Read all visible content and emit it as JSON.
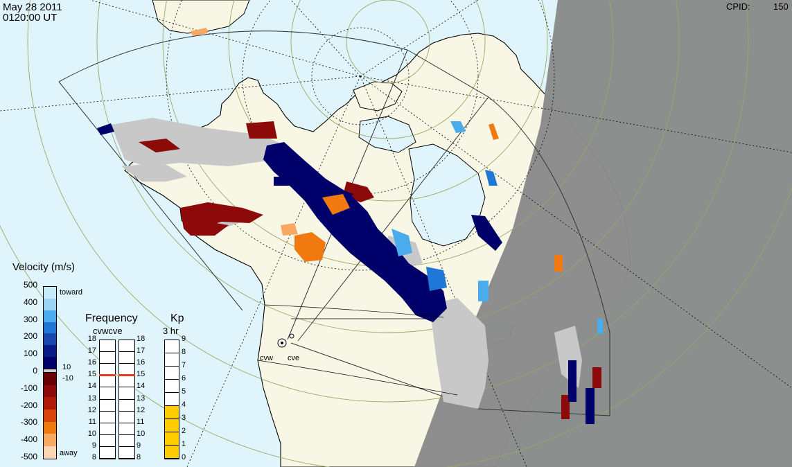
{
  "header": {
    "date": "May 28 2011",
    "time": "0120:00 UT",
    "cpid_label": "CPID:",
    "cpid_value": "150"
  },
  "colors": {
    "ocean": "#e0f4fc",
    "land": "#f8f6e4",
    "night": "#8a8a8a",
    "ground_scatter": "#c8c8c8",
    "coast": "#000000",
    "grid": "#9aa86a"
  },
  "radars": [
    {
      "code": "cvw"
    },
    {
      "code": "cve"
    }
  ],
  "velocity_scale": {
    "title": "Velocity (m/s)",
    "ticks": [
      "500",
      "400",
      "300",
      "200",
      "100",
      "0",
      "-100",
      "-200",
      "-300",
      "-400",
      "-500"
    ],
    "toward_label": "toward",
    "away_label": "away",
    "gs_upper_label": "10",
    "gs_lower_label": "-10",
    "colors": [
      "#c6ecfb",
      "#9dd6f5",
      "#4aacec",
      "#1f78d8",
      "#1847b0",
      "#0a1a86",
      "#00006b",
      "#6b0000",
      "#8c0a0a",
      "#b01c0a",
      "#d9430a",
      "#f07a10",
      "#f8a860",
      "#fcd6b4"
    ]
  },
  "frequency": {
    "title": "Frequency",
    "subtitle": "cvwcve",
    "ticks": [
      "18",
      "17",
      "16",
      "15",
      "14",
      "13",
      "12",
      "11",
      "10",
      "9",
      "8"
    ],
    "cvw_mhz": 15,
    "cve_mhz": 15,
    "marker_color": "#e0401a"
  },
  "kp": {
    "title": "Kp",
    "subtitle": "3 hr",
    "ticks": [
      "9",
      "8",
      "7",
      "6",
      "5",
      "4",
      "3",
      "2",
      "1",
      "0"
    ],
    "value": 4,
    "fill_color": "#ffcc00"
  },
  "backscatter_zones": [
    {
      "type": "ground",
      "color": "#c8c8c8"
    },
    {
      "type": "toward_strong",
      "color": "#00006b"
    },
    {
      "type": "away_moderate",
      "color": "#8c0a0a"
    },
    {
      "type": "away_fast",
      "color": "#f07a10"
    },
    {
      "type": "toward_fast",
      "color": "#4aacec"
    }
  ]
}
